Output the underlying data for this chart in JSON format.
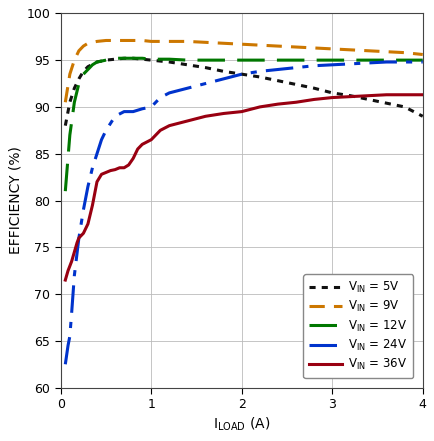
{
  "title": "",
  "xlabel": "I_LOAD (A)",
  "ylabel": "EFFICIENCY (%)",
  "xlim": [
    0,
    4
  ],
  "ylim": [
    60,
    100
  ],
  "yticks": [
    60,
    65,
    70,
    75,
    80,
    85,
    90,
    95,
    100
  ],
  "xticks": [
    0,
    1,
    2,
    3,
    4
  ],
  "grid_color": "#bbbbbb",
  "background_color": "#ffffff",
  "curves": {
    "vin5": {
      "label": "V_IN = 5V",
      "color": "#111111",
      "linestyle": "dotted",
      "linewidth": 2.2,
      "x": [
        0.05,
        0.1,
        0.15,
        0.2,
        0.25,
        0.3,
        0.4,
        0.5,
        0.6,
        0.7,
        0.8,
        0.9,
        1.0,
        1.2,
        1.4,
        1.6,
        1.8,
        2.0,
        2.2,
        2.4,
        2.6,
        2.8,
        3.0,
        3.2,
        3.4,
        3.6,
        3.8,
        4.0
      ],
      "y": [
        88.0,
        90.5,
        92.0,
        93.0,
        93.8,
        94.3,
        94.8,
        95.0,
        95.1,
        95.2,
        95.2,
        95.1,
        95.0,
        94.8,
        94.5,
        94.2,
        93.8,
        93.5,
        93.2,
        92.8,
        92.4,
        92.0,
        91.5,
        91.2,
        90.8,
        90.4,
        90.0,
        89.0
      ]
    },
    "vin9": {
      "label": "V_IN = 9V",
      "color": "#cc7700",
      "linestyle": "dashed",
      "linewidth": 2.2,
      "dashes": [
        5,
        3
      ],
      "x": [
        0.05,
        0.1,
        0.15,
        0.2,
        0.25,
        0.3,
        0.4,
        0.5,
        0.6,
        0.7,
        0.8,
        0.9,
        1.0,
        1.2,
        1.4,
        1.6,
        1.8,
        2.0,
        2.2,
        2.4,
        2.6,
        2.8,
        3.0,
        3.2,
        3.4,
        3.6,
        3.8,
        4.0
      ],
      "y": [
        90.5,
        93.5,
        95.0,
        96.0,
        96.5,
        96.8,
        97.0,
        97.1,
        97.1,
        97.1,
        97.1,
        97.1,
        97.0,
        97.0,
        97.0,
        96.9,
        96.8,
        96.7,
        96.6,
        96.5,
        96.4,
        96.3,
        96.2,
        96.1,
        96.0,
        95.9,
        95.8,
        95.6
      ]
    },
    "vin12": {
      "label": "V_IN = 12V",
      "color": "#007700",
      "linestyle": "dashed",
      "linewidth": 2.2,
      "dashes": [
        9,
        4
      ],
      "x": [
        0.05,
        0.1,
        0.15,
        0.2,
        0.25,
        0.3,
        0.35,
        0.4,
        0.5,
        0.6,
        0.7,
        0.8,
        0.9,
        1.0,
        1.2,
        1.4,
        1.6,
        1.8,
        2.0,
        2.2,
        2.4,
        2.6,
        2.8,
        3.0,
        3.2,
        3.4,
        3.6,
        3.8,
        4.0
      ],
      "y": [
        81.0,
        87.0,
        90.5,
        92.5,
        93.5,
        94.0,
        94.5,
        94.8,
        95.0,
        95.2,
        95.2,
        95.2,
        95.2,
        95.1,
        95.1,
        95.0,
        95.0,
        95.0,
        95.0,
        95.0,
        95.0,
        95.0,
        95.0,
        95.0,
        95.0,
        95.0,
        95.0,
        95.0,
        95.0
      ]
    },
    "vin24": {
      "label": "V_IN = 24V",
      "color": "#0033cc",
      "linestyle": "dashdot",
      "linewidth": 2.2,
      "dashes": [
        9,
        3,
        2,
        3
      ],
      "x": [
        0.05,
        0.08,
        0.1,
        0.12,
        0.15,
        0.2,
        0.25,
        0.3,
        0.35,
        0.4,
        0.45,
        0.5,
        0.6,
        0.7,
        0.8,
        0.9,
        1.0,
        1.1,
        1.2,
        1.4,
        1.6,
        1.8,
        2.0,
        2.2,
        2.4,
        2.6,
        2.8,
        3.0,
        3.2,
        3.4,
        3.6,
        3.8,
        4.0
      ],
      "y": [
        62.5,
        64.5,
        65.5,
        68.0,
        72.0,
        76.0,
        79.0,
        81.5,
        83.5,
        85.0,
        86.5,
        87.5,
        89.0,
        89.5,
        89.5,
        89.8,
        90.0,
        91.0,
        91.5,
        92.0,
        92.5,
        93.0,
        93.5,
        93.8,
        94.0,
        94.2,
        94.4,
        94.5,
        94.6,
        94.7,
        94.8,
        94.8,
        94.8
      ]
    },
    "vin36": {
      "label": "V_IN = 36V",
      "color": "#990011",
      "linestyle": "solid",
      "linewidth": 2.2,
      "dashes": [],
      "x": [
        0.05,
        0.08,
        0.1,
        0.12,
        0.15,
        0.18,
        0.2,
        0.25,
        0.3,
        0.35,
        0.4,
        0.45,
        0.5,
        0.55,
        0.6,
        0.65,
        0.7,
        0.75,
        0.8,
        0.85,
        0.9,
        1.0,
        1.1,
        1.2,
        1.4,
        1.6,
        1.8,
        2.0,
        2.2,
        2.4,
        2.6,
        2.8,
        3.0,
        3.2,
        3.4,
        3.6,
        3.8,
        4.0
      ],
      "y": [
        71.5,
        72.5,
        73.0,
        73.5,
        74.5,
        75.5,
        76.0,
        76.5,
        77.5,
        79.5,
        82.0,
        82.8,
        83.0,
        83.2,
        83.3,
        83.5,
        83.5,
        83.8,
        84.5,
        85.5,
        86.0,
        86.5,
        87.5,
        88.0,
        88.5,
        89.0,
        89.3,
        89.5,
        90.0,
        90.3,
        90.5,
        90.8,
        91.0,
        91.1,
        91.2,
        91.3,
        91.3,
        91.3
      ]
    }
  }
}
